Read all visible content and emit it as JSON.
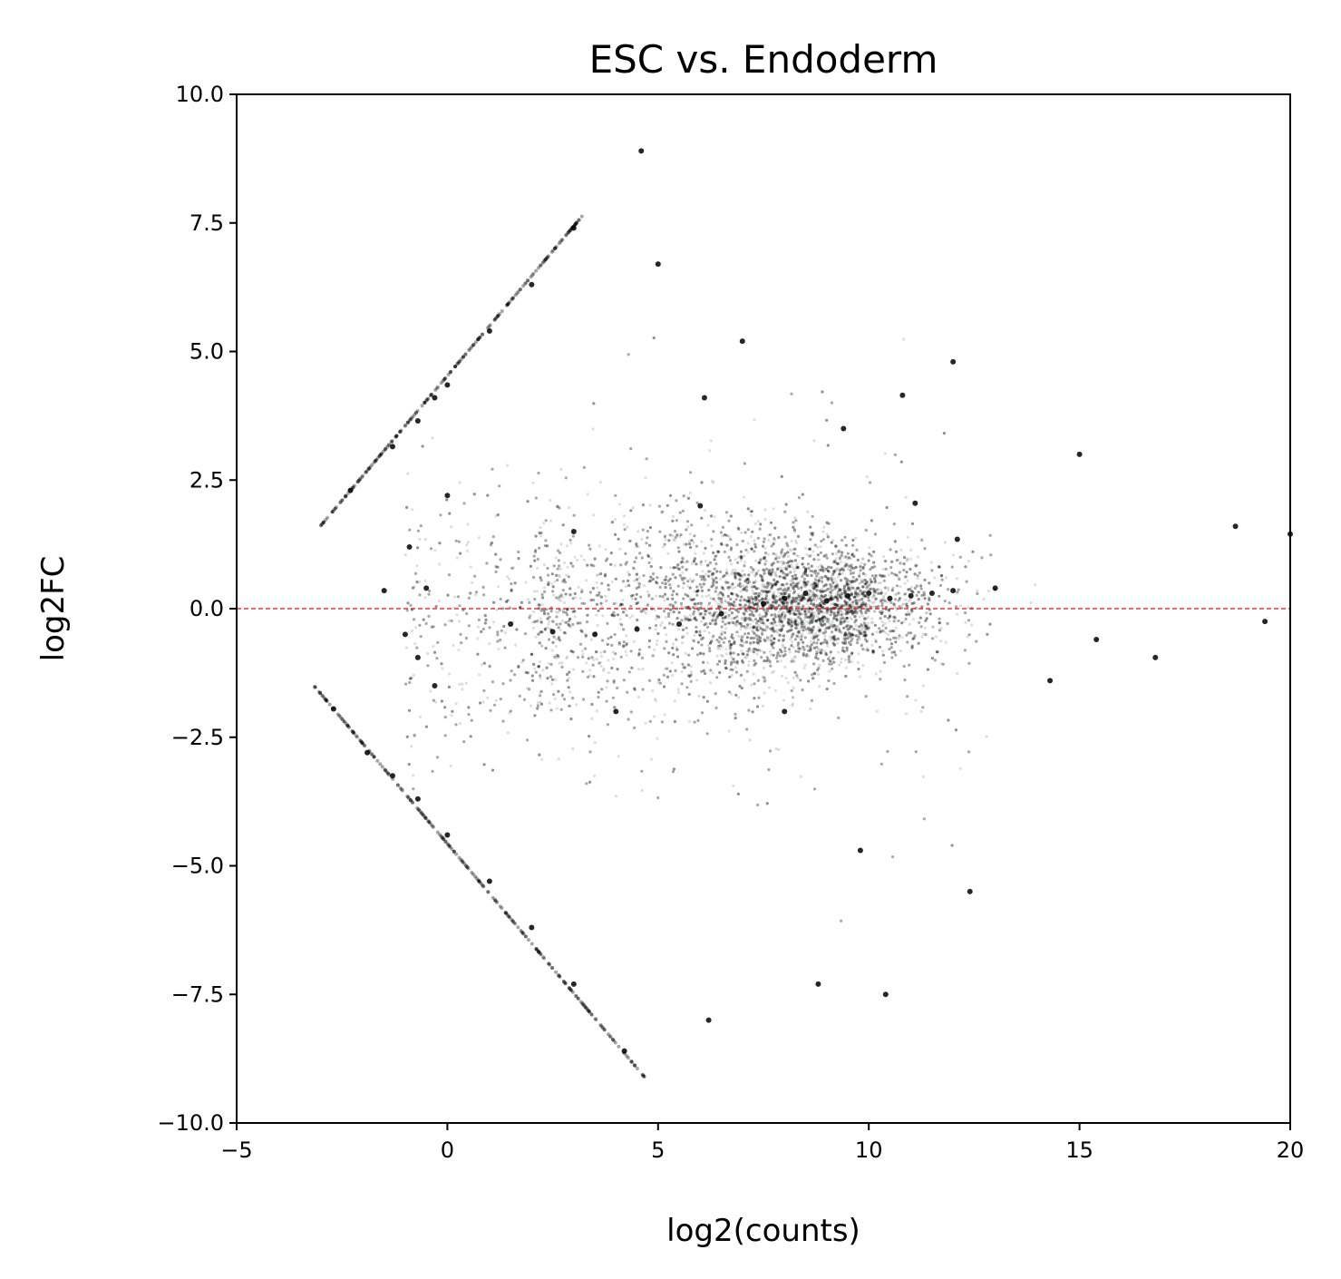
{
  "chart_data": {
    "type": "scatter",
    "title": "ESC vs. Endoderm",
    "xlabel": "log2(counts)",
    "ylabel": "log2FC",
    "xlim": [
      -5,
      20
    ],
    "ylim": [
      -10,
      10
    ],
    "xticks": [
      -5,
      0,
      5,
      10,
      15,
      20
    ],
    "yticks": [
      -10.0,
      -7.5,
      -5.0,
      -2.5,
      0.0,
      2.5,
      5.0,
      7.5,
      10.0
    ],
    "xtick_labels": [
      "−5",
      "0",
      "5",
      "10",
      "15",
      "20"
    ],
    "ytick_labels": [
      "−10.0",
      "−7.5",
      "−5.0",
      "−2.5",
      "0.0",
      "2.5",
      "5.0",
      "7.5",
      "10.0"
    ],
    "reference_line": {
      "y": 0,
      "color": "#ff0000",
      "style": "dashed"
    },
    "point_color": "#000000",
    "point_opacity": 0.15,
    "grid": false,
    "legend": "none",
    "series": [
      {
        "values": [
          {
            "x": -2.3,
            "y": 2.3
          },
          {
            "x": -1.3,
            "y": 3.15
          },
          {
            "x": -0.7,
            "y": 3.65
          },
          {
            "x": -0.3,
            "y": 4.1
          },
          {
            "x": 0.0,
            "y": 4.35
          },
          {
            "x": 1.0,
            "y": 5.4
          },
          {
            "x": 2.0,
            "y": 6.3
          },
          {
            "x": 3.0,
            "y": 7.4
          },
          {
            "x": -2.7,
            "y": -1.95
          },
          {
            "x": -1.9,
            "y": -2.8
          },
          {
            "x": -1.3,
            "y": -3.25
          },
          {
            "x": -0.7,
            "y": -3.7
          },
          {
            "x": 0.0,
            "y": -4.4
          },
          {
            "x": 1.0,
            "y": -5.3
          },
          {
            "x": 2.0,
            "y": -6.2
          },
          {
            "x": 3.0,
            "y": -7.3
          },
          {
            "x": 4.2,
            "y": -8.6
          },
          {
            "x": -1.5,
            "y": 0.35
          },
          {
            "x": -1.0,
            "y": -0.5
          },
          {
            "x": -0.5,
            "y": 0.4
          },
          {
            "x": -0.7,
            "y": -0.95
          },
          {
            "x": -0.9,
            "y": 1.2
          },
          {
            "x": -0.3,
            "y": -1.5
          },
          {
            "x": 0.0,
            "y": 2.2
          },
          {
            "x": 6.1,
            "y": 4.1
          },
          {
            "x": 10.8,
            "y": 4.15
          },
          {
            "x": 11.1,
            "y": 2.05
          },
          {
            "x": 12.1,
            "y": 1.35
          },
          {
            "x": 18.7,
            "y": 1.6
          },
          {
            "x": 9.4,
            "y": 3.5
          },
          {
            "x": 4.6,
            "y": 8.9
          },
          {
            "x": 5.0,
            "y": 6.7
          },
          {
            "x": 6.2,
            "y": -8.0
          },
          {
            "x": 10.4,
            "y": -7.5
          },
          {
            "x": 8.8,
            "y": -7.3
          },
          {
            "x": 15.0,
            "y": 3.0
          },
          {
            "x": 19.4,
            "y": -0.25
          },
          {
            "x": 16.8,
            "y": -0.95
          },
          {
            "x": 20.0,
            "y": 1.45
          },
          {
            "x": 15.4,
            "y": -0.6
          },
          {
            "x": 14.3,
            "y": -1.4
          },
          {
            "x": 12.0,
            "y": 4.8
          },
          {
            "x": 12.4,
            "y": -5.5
          },
          {
            "x": 9.8,
            "y": -4.7
          },
          {
            "x": 7.0,
            "y": 5.2
          },
          {
            "x": 7.5,
            "y": 0.1
          },
          {
            "x": 8.0,
            "y": 0.2
          },
          {
            "x": 8.5,
            "y": 0.3
          },
          {
            "x": 9.0,
            "y": 0.15
          },
          {
            "x": 9.5,
            "y": 0.25
          },
          {
            "x": 10.0,
            "y": 0.3
          },
          {
            "x": 10.5,
            "y": 0.2
          },
          {
            "x": 11.0,
            "y": 0.25
          },
          {
            "x": 11.5,
            "y": 0.3
          },
          {
            "x": 12.0,
            "y": 0.35
          },
          {
            "x": 13.0,
            "y": 0.4
          },
          {
            "x": 6.5,
            "y": -0.1
          },
          {
            "x": 5.5,
            "y": -0.3
          },
          {
            "x": 4.5,
            "y": -0.4
          },
          {
            "x": 3.5,
            "y": -0.5
          },
          {
            "x": 2.5,
            "y": -0.45
          },
          {
            "x": 1.5,
            "y": -0.3
          },
          {
            "x": 3.0,
            "y": 1.5
          },
          {
            "x": 4.0,
            "y": -2.0
          },
          {
            "x": 6.0,
            "y": 2.0
          },
          {
            "x": 8.0,
            "y": -2.0
          }
        ]
      }
    ]
  }
}
